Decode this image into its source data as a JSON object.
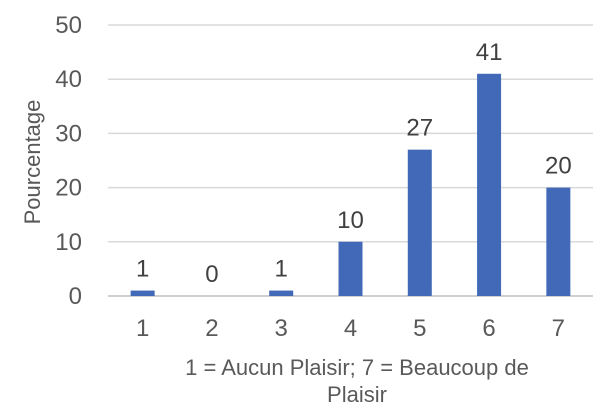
{
  "chart_data": {
    "type": "bar",
    "categories": [
      "1",
      "2",
      "3",
      "4",
      "5",
      "6",
      "7"
    ],
    "values": [
      1,
      0,
      1,
      10,
      27,
      41,
      20
    ],
    "data_labels": [
      "1",
      "0",
      "1",
      "10",
      "27",
      "41",
      "20"
    ],
    "title": "",
    "xlabel_lines": [
      "1 = Aucun Plaisir; 7 = Beaucoup de",
      "Plaisir"
    ],
    "ylabel": "Pourcentage",
    "ylim": [
      0,
      50
    ],
    "yticks": [
      0,
      10,
      20,
      30,
      40,
      50
    ],
    "grid": true,
    "legend": "none",
    "bar_color": "#4169B8"
  }
}
